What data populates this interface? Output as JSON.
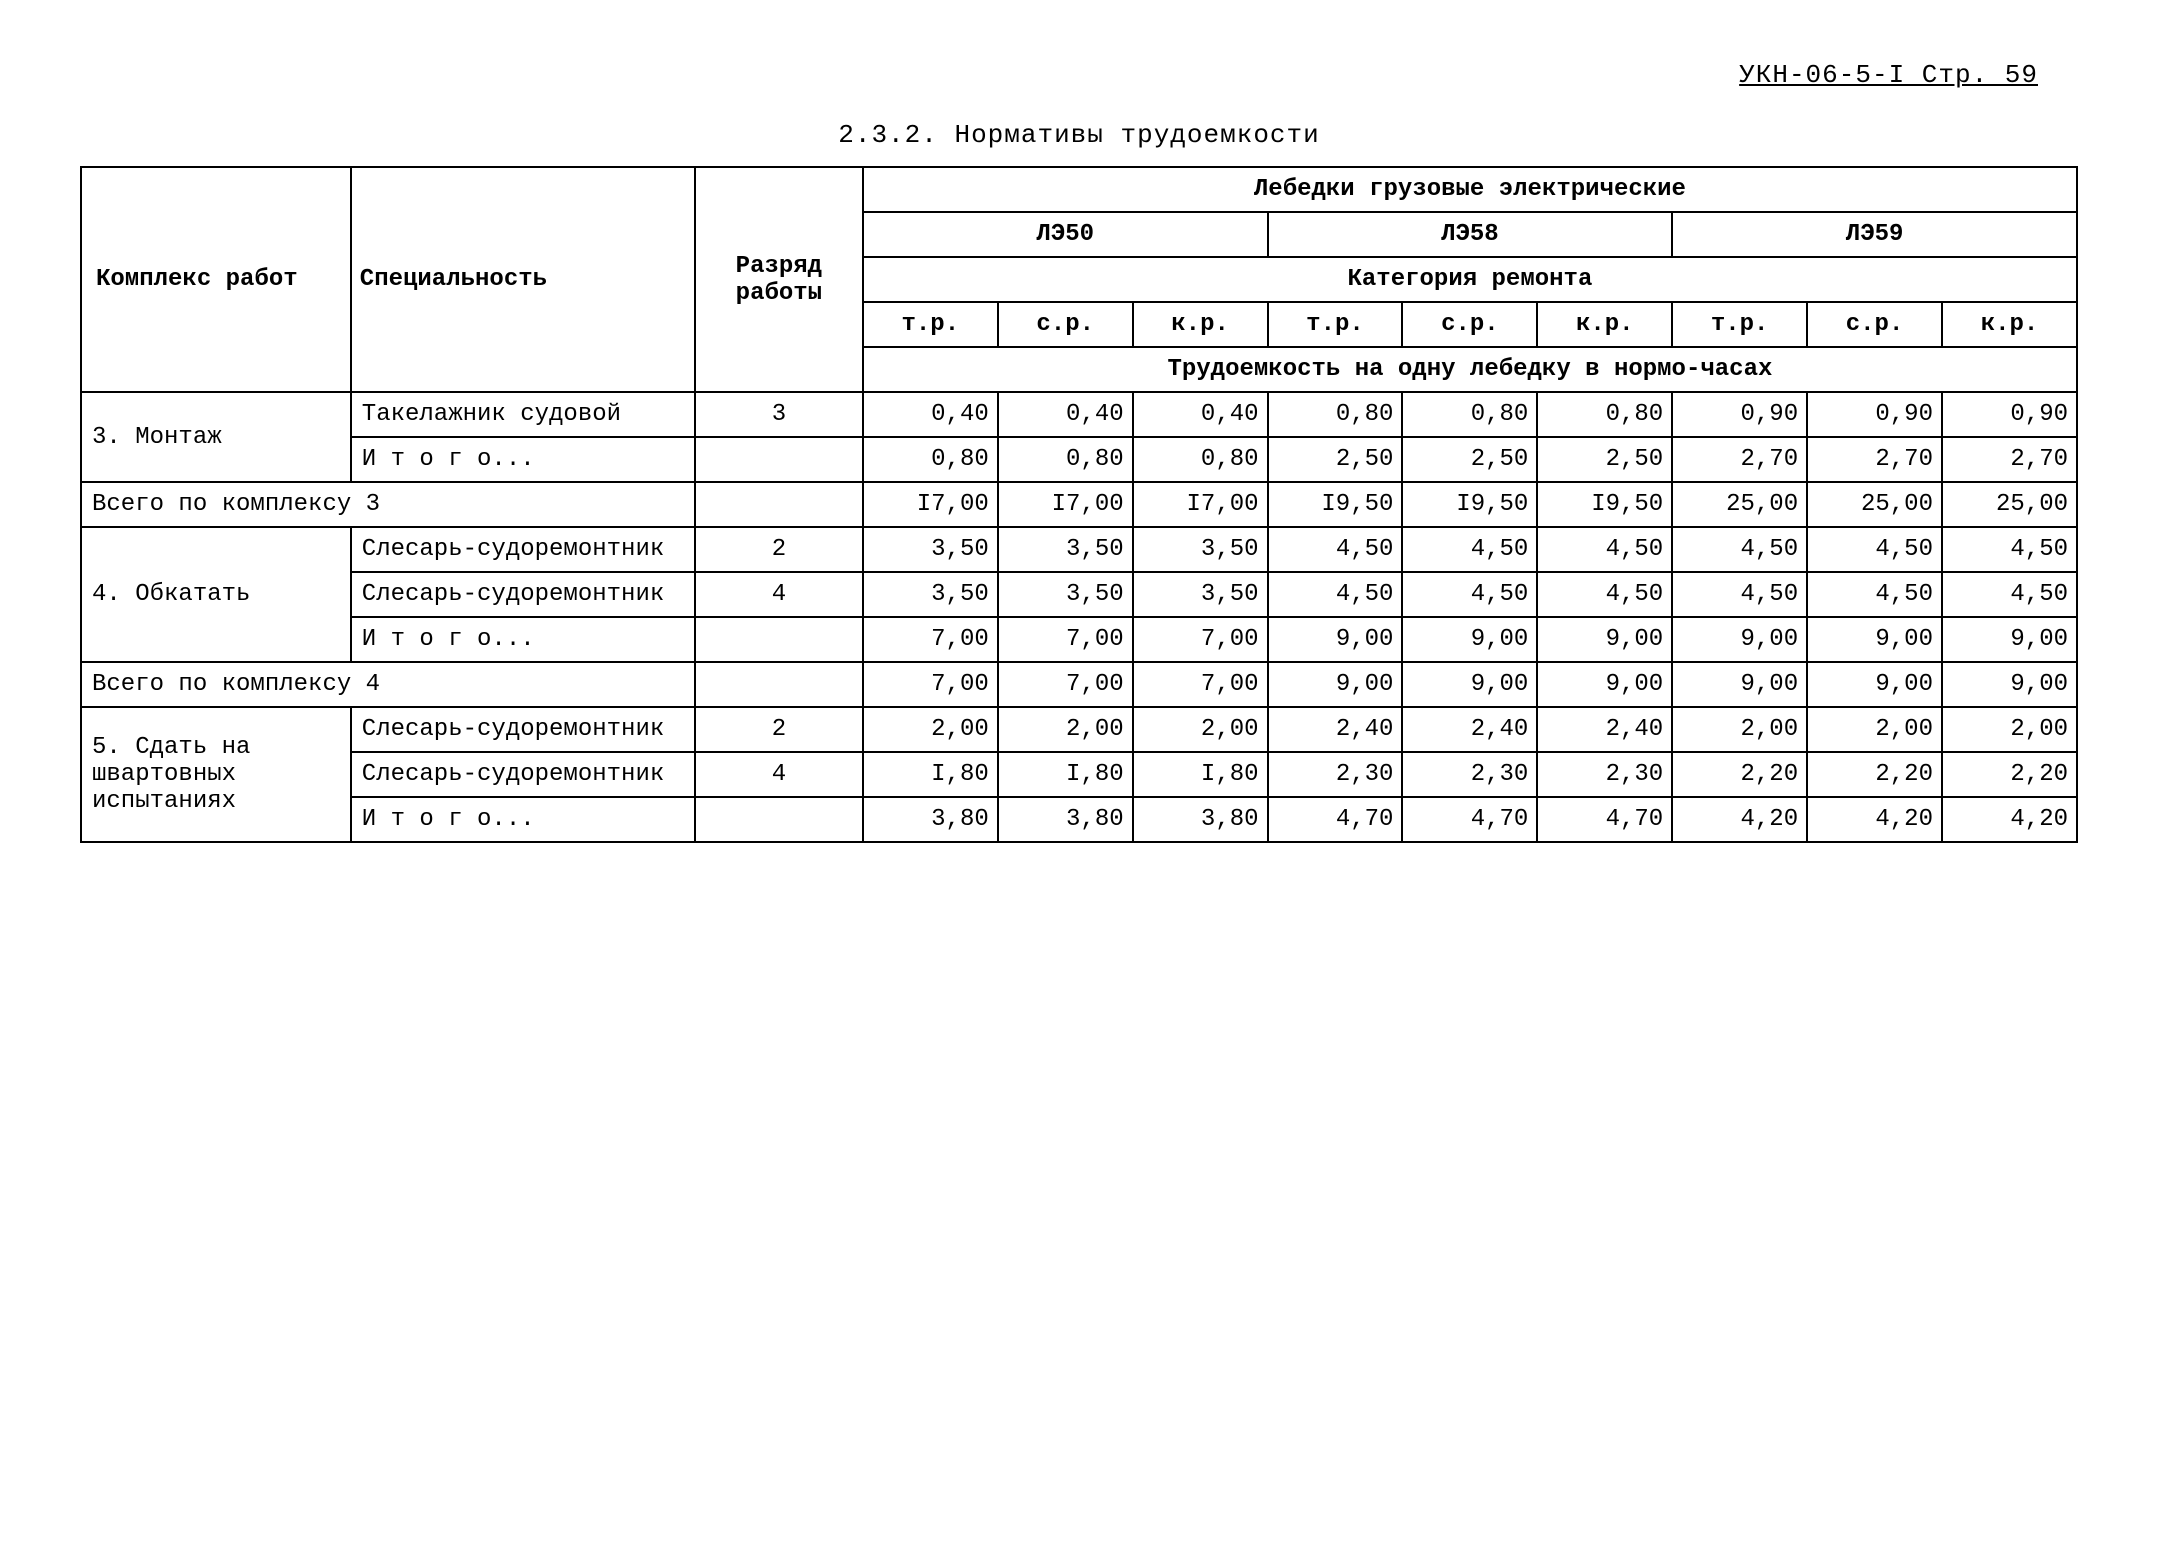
{
  "header": {
    "doc_ref": "УКН-06-5-I Стр. 59"
  },
  "title": "2.3.2. Нормативы трудоемкости",
  "table": {
    "headers": {
      "col1": "Комплекс работ",
      "col2": "Специальность",
      "col3": "Разряд работы",
      "group_title": "Лебедки грузовые электрические",
      "models": [
        "ЛЭ50",
        "ЛЭ58",
        "ЛЭ59"
      ],
      "category": "Категория ремонта",
      "repair_types": [
        "т.р.",
        "с.р.",
        "к.р.",
        "т.р.",
        "с.р.",
        "к.р.",
        "т.р.",
        "с.р.",
        "к.р."
      ],
      "unit_line": "Трудоемкость на одну лебедку в нормо-часах"
    },
    "rows": [
      {
        "complex": "3. Монтаж",
        "lines": [
          {
            "spec": "Такелажник судовой",
            "grade": "3",
            "vals": [
              "0,40",
              "0,40",
              "0,40",
              "0,80",
              "0,80",
              "0,80",
              "0,90",
              "0,90",
              "0,90"
            ]
          },
          {
            "spec": "И т о г о...",
            "grade": "",
            "vals": [
              "0,80",
              "0,80",
              "0,80",
              "2,50",
              "2,50",
              "2,50",
              "2,70",
              "2,70",
              "2,70"
            ]
          }
        ],
        "total": {
          "label": "Всего по комплексу 3",
          "vals": [
            "I7,00",
            "I7,00",
            "I7,00",
            "I9,50",
            "I9,50",
            "I9,50",
            "25,00",
            "25,00",
            "25,00"
          ]
        }
      },
      {
        "complex": "4. Обкатать",
        "lines": [
          {
            "spec": "Слесарь-судоремонтник",
            "grade": "2",
            "vals": [
              "3,50",
              "3,50",
              "3,50",
              "4,50",
              "4,50",
              "4,50",
              "4,50",
              "4,50",
              "4,50"
            ]
          },
          {
            "spec": "Слесарь-судоремонтник",
            "grade": "4",
            "vals": [
              "3,50",
              "3,50",
              "3,50",
              "4,50",
              "4,50",
              "4,50",
              "4,50",
              "4,50",
              "4,50"
            ]
          },
          {
            "spec": "И т о г о...",
            "grade": "",
            "vals": [
              "7,00",
              "7,00",
              "7,00",
              "9,00",
              "9,00",
              "9,00",
              "9,00",
              "9,00",
              "9,00"
            ]
          }
        ],
        "total": {
          "label": "Всего по комплексу 4",
          "vals": [
            "7,00",
            "7,00",
            "7,00",
            "9,00",
            "9,00",
            "9,00",
            "9,00",
            "9,00",
            "9,00"
          ]
        }
      },
      {
        "complex": "5. Сдать на швартовных испытаниях",
        "lines": [
          {
            "spec": "Слесарь-судоремонтник",
            "grade": "2",
            "vals": [
              "2,00",
              "2,00",
              "2,00",
              "2,40",
              "2,40",
              "2,40",
              "2,00",
              "2,00",
              "2,00"
            ]
          },
          {
            "spec": "Слесарь-судоремонтник",
            "grade": "4",
            "vals": [
              "I,80",
              "I,80",
              "I,80",
              "2,30",
              "2,30",
              "2,30",
              "2,20",
              "2,20",
              "2,20"
            ]
          },
          {
            "spec": "И т о г о...",
            "grade": "",
            "vals": [
              "3,80",
              "3,80",
              "3,80",
              "4,70",
              "4,70",
              "4,70",
              "4,20",
              "4,20",
              "4,20"
            ]
          }
        ]
      }
    ]
  }
}
